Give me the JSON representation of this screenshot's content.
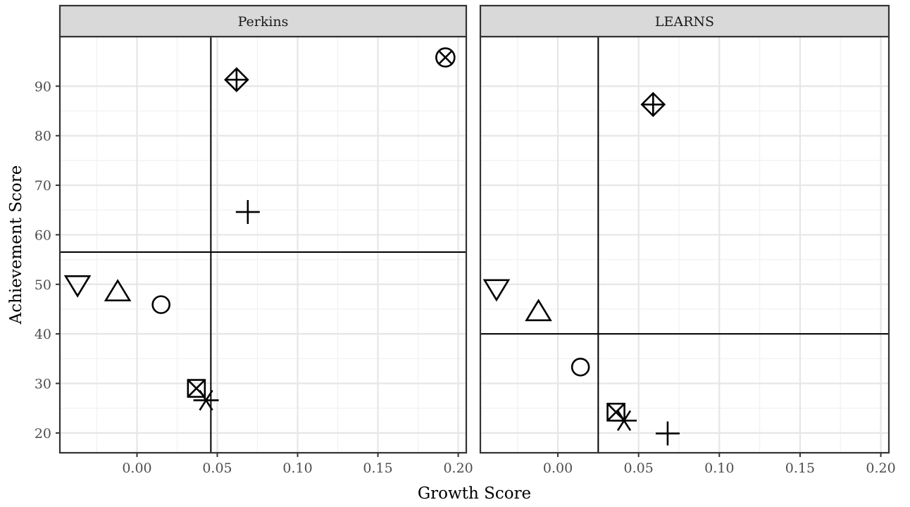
{
  "chart_data": {
    "type": "scatter",
    "facets": [
      "Perkins",
      "LEARNS"
    ],
    "xlabel": "Growth Score",
    "ylabel": "Achievement Score",
    "xlim": [
      -0.048,
      0.205
    ],
    "ylim": [
      16,
      100
    ],
    "x_ticks": [
      0.0,
      0.05,
      0.1,
      0.15,
      0.2
    ],
    "x_tick_labels": [
      "0.00",
      "0.05",
      "0.10",
      "0.15",
      "0.20"
    ],
    "y_ticks": [
      20,
      30,
      40,
      50,
      60,
      70,
      80,
      90
    ],
    "y_tick_labels": [
      "20",
      "30",
      "40",
      "50",
      "60",
      "70",
      "80",
      "90"
    ],
    "grid": true,
    "panels": [
      {
        "name": "Perkins",
        "vline_x": 0.046,
        "hline_y": 56.5,
        "points": [
          {
            "shape": "triangle-down",
            "x": -0.037,
            "y": 49.8
          },
          {
            "shape": "triangle-up",
            "x": -0.012,
            "y": 48.6
          },
          {
            "shape": "circle",
            "x": 0.015,
            "y": 45.9
          },
          {
            "shape": "square-cross",
            "x": 0.037,
            "y": 29.0
          },
          {
            "shape": "asterisk",
            "x": 0.043,
            "y": 26.6
          },
          {
            "shape": "diamond-plus",
            "x": 0.062,
            "y": 91.3
          },
          {
            "shape": "plus",
            "x": 0.069,
            "y": 64.6
          },
          {
            "shape": "circle-cross",
            "x": 0.192,
            "y": 95.8
          }
        ]
      },
      {
        "name": "LEARNS",
        "vline_x": 0.025,
        "hline_y": 40.0,
        "points": [
          {
            "shape": "triangle-down",
            "x": -0.038,
            "y": 49.0
          },
          {
            "shape": "triangle-up",
            "x": -0.012,
            "y": 44.6
          },
          {
            "shape": "circle",
            "x": 0.014,
            "y": 33.3
          },
          {
            "shape": "square-cross",
            "x": 0.036,
            "y": 24.2
          },
          {
            "shape": "asterisk",
            "x": 0.041,
            "y": 22.5
          },
          {
            "shape": "diamond-plus",
            "x": 0.059,
            "y": 86.3
          },
          {
            "shape": "plus",
            "x": 0.068,
            "y": 19.9
          }
        ]
      }
    ]
  }
}
